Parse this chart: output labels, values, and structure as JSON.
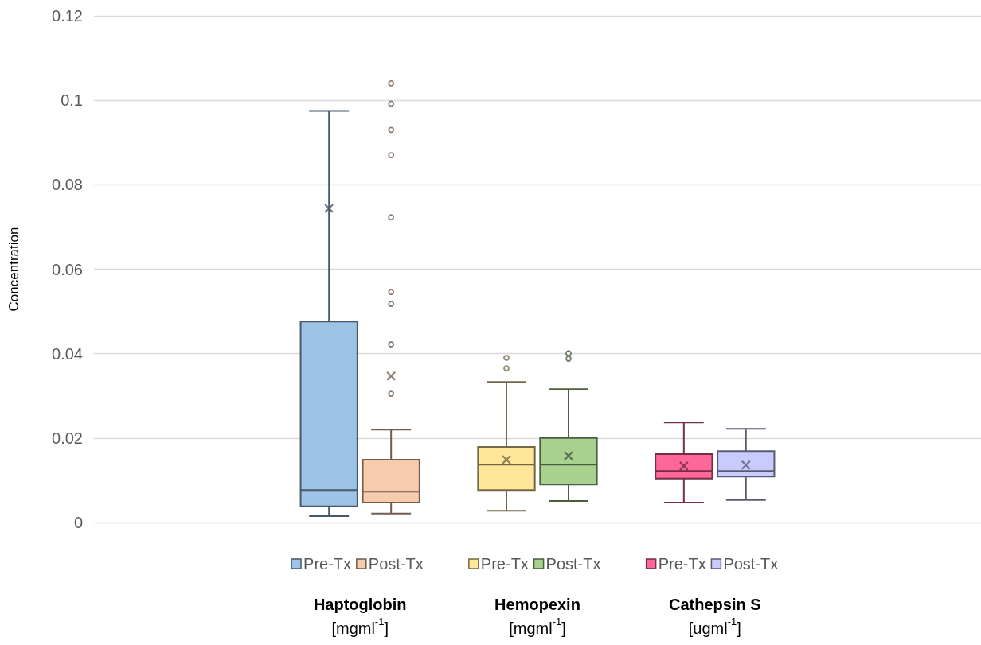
{
  "chart_data": {
    "type": "box",
    "ylabel": "Concentration",
    "categories": [
      null,
      "Haptoglobin\n[mgml$^{-1}$]",
      "Hemopexin\n[mgml$^{-1}$]",
      "Cathepsin S\n[ugml$^{-1}$]",
      null
    ],
    "ylim": [
      0,
      0.12
    ],
    "yticks": [
      0,
      0.02,
      0.04,
      0.06,
      0.08,
      0.1,
      0.12
    ],
    "grid": "y",
    "legend": "bottom",
    "series": [
      {
        "name": "Pre-Tx",
        "color": "#9dc3e6",
        "boxes": [
          null,
          {
            "low": 0.0015,
            "q1": 0.0038,
            "median": 0.0077,
            "q3": 0.0476,
            "high": 0.0975,
            "mean": 0.0744
          },
          null,
          null,
          null
        ]
      },
      {
        "name": "Post-Tx",
        "color": "#f8cbad",
        "boxes": [
          null,
          {
            "low": 0.0021,
            "q1": 0.0047,
            "median": 0.0073,
            "q3": 0.0149,
            "high": 0.022,
            "mean": 0.0347,
            "outliers": [
              0.104,
              0.0992,
              0.093,
              0.087,
              0.0723,
              0.0546,
              0.0518,
              0.0422,
              0.0305
            ]
          },
          null,
          null,
          null
        ]
      },
      {
        "name": "Pre-Tx",
        "color": "#ffe699",
        "boxes": [
          null,
          null,
          {
            "low": 0.0028,
            "q1": 0.0077,
            "median": 0.0137,
            "q3": 0.0179,
            "high": 0.0333,
            "mean": 0.0149,
            "outliers": [
              0.039,
              0.0365
            ]
          },
          null,
          null
        ]
      },
      {
        "name": "Post-Tx",
        "color": "#a9d18e",
        "boxes": [
          null,
          null,
          {
            "low": 0.0051,
            "q1": 0.009,
            "median": 0.0137,
            "q3": 0.02,
            "high": 0.0316,
            "mean": 0.0158,
            "outliers": [
              0.0401,
              0.0388
            ]
          },
          null,
          null
        ]
      },
      {
        "name": "Pre-Tx",
        "color": "#ff6699",
        "boxes": [
          null,
          null,
          null,
          {
            "low": 0.0047,
            "q1": 0.0104,
            "median": 0.0122,
            "q3": 0.0162,
            "high": 0.0237,
            "mean": 0.0134
          },
          null
        ]
      },
      {
        "name": "Post-Tx",
        "color": "#c9cbff",
        "boxes": [
          null,
          null,
          null,
          {
            "low": 0.0053,
            "q1": 0.0109,
            "median": 0.0122,
            "q3": 0.0169,
            "high": 0.0222,
            "mean": 0.0136
          },
          null
        ]
      }
    ]
  }
}
